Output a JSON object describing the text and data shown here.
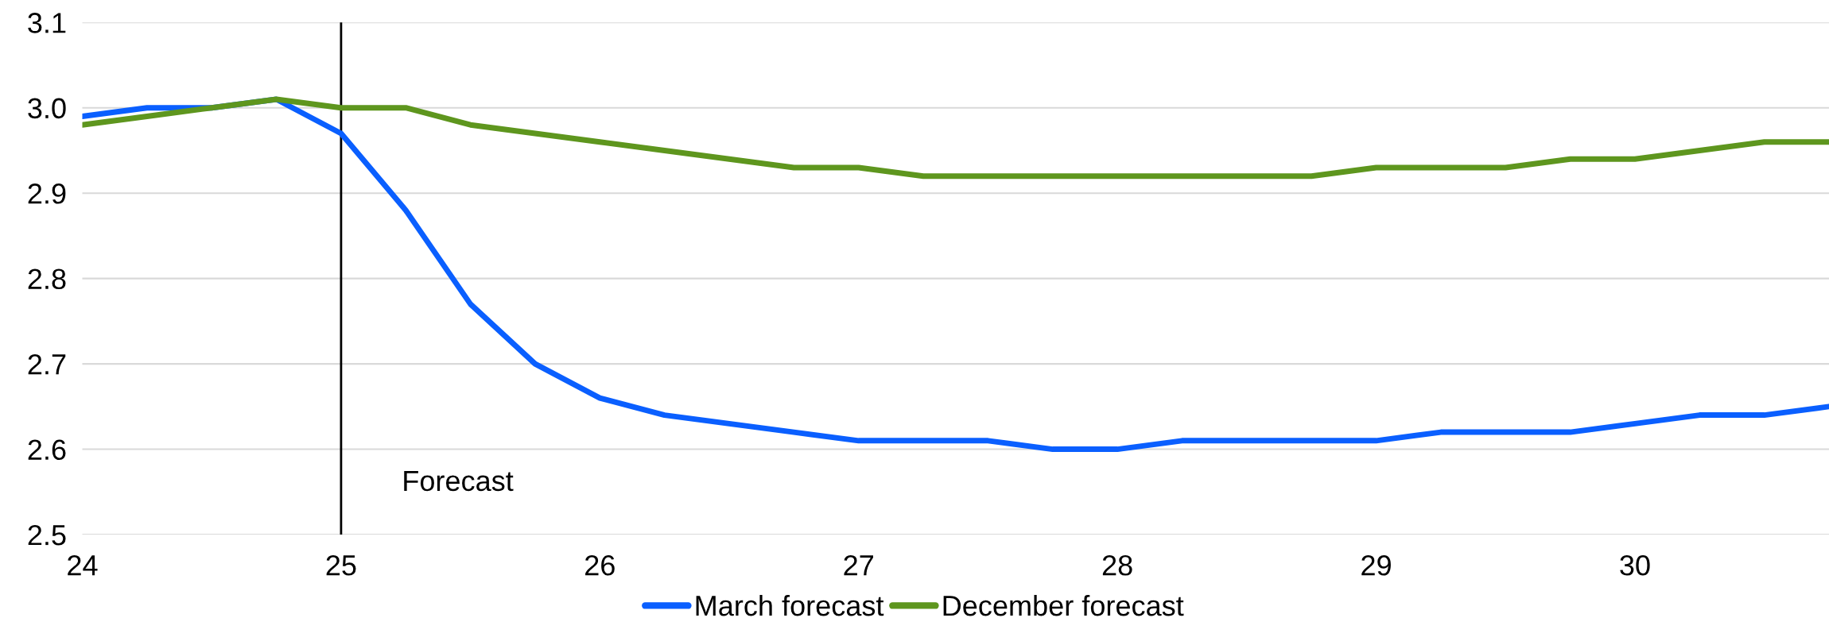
{
  "chart_data": {
    "type": "line",
    "x": [
      24,
      24.25,
      24.5,
      24.75,
      25,
      25.25,
      25.5,
      25.75,
      26,
      26.25,
      26.5,
      26.75,
      27,
      27.25,
      27.5,
      27.75,
      28,
      28.25,
      28.5,
      28.75,
      29,
      29.25,
      29.5,
      29.75,
      30,
      30.25,
      30.5,
      30.75
    ],
    "series": [
      {
        "name": "March forecast",
        "color": "#0a5fff",
        "values": [
          2.99,
          3.0,
          3.0,
          3.01,
          2.97,
          2.88,
          2.77,
          2.7,
          2.66,
          2.64,
          2.63,
          2.62,
          2.61,
          2.61,
          2.61,
          2.6,
          2.6,
          2.61,
          2.61,
          2.61,
          2.61,
          2.62,
          2.62,
          2.62,
          2.63,
          2.64,
          2.64,
          2.65
        ]
      },
      {
        "name": "December forecast",
        "color": "#5e961e",
        "values": [
          2.98,
          2.99,
          3.0,
          3.01,
          3.0,
          3.0,
          2.98,
          2.97,
          2.96,
          2.95,
          2.94,
          2.93,
          2.93,
          2.92,
          2.92,
          2.92,
          2.92,
          2.92,
          2.92,
          2.92,
          2.93,
          2.93,
          2.93,
          2.94,
          2.94,
          2.95,
          2.96,
          2.96
        ]
      }
    ],
    "xlim": [
      24,
      30.75
    ],
    "xticks": [
      24,
      25,
      26,
      27,
      28,
      29,
      30
    ],
    "ylim": [
      2.5,
      3.1
    ],
    "yticks": [
      {
        "value": 2.5,
        "label": "2.5"
      },
      {
        "value": 2.6,
        "label": "2.6"
      },
      {
        "value": 2.7,
        "label": "2.7"
      },
      {
        "value": 2.8,
        "label": "2.8"
      },
      {
        "value": 2.9,
        "label": "2.9"
      },
      {
        "value": 3.0,
        "label": "3.0"
      },
      {
        "value": 3.1,
        "label": "3.1"
      }
    ],
    "ref_lines": [
      {
        "axis": "x",
        "value": 25,
        "color": "#000000"
      }
    ],
    "annotations": [
      "Forecast"
    ],
    "grid": "y",
    "legend": "bottom",
    "marker": "none",
    "line_style": "solid"
  }
}
